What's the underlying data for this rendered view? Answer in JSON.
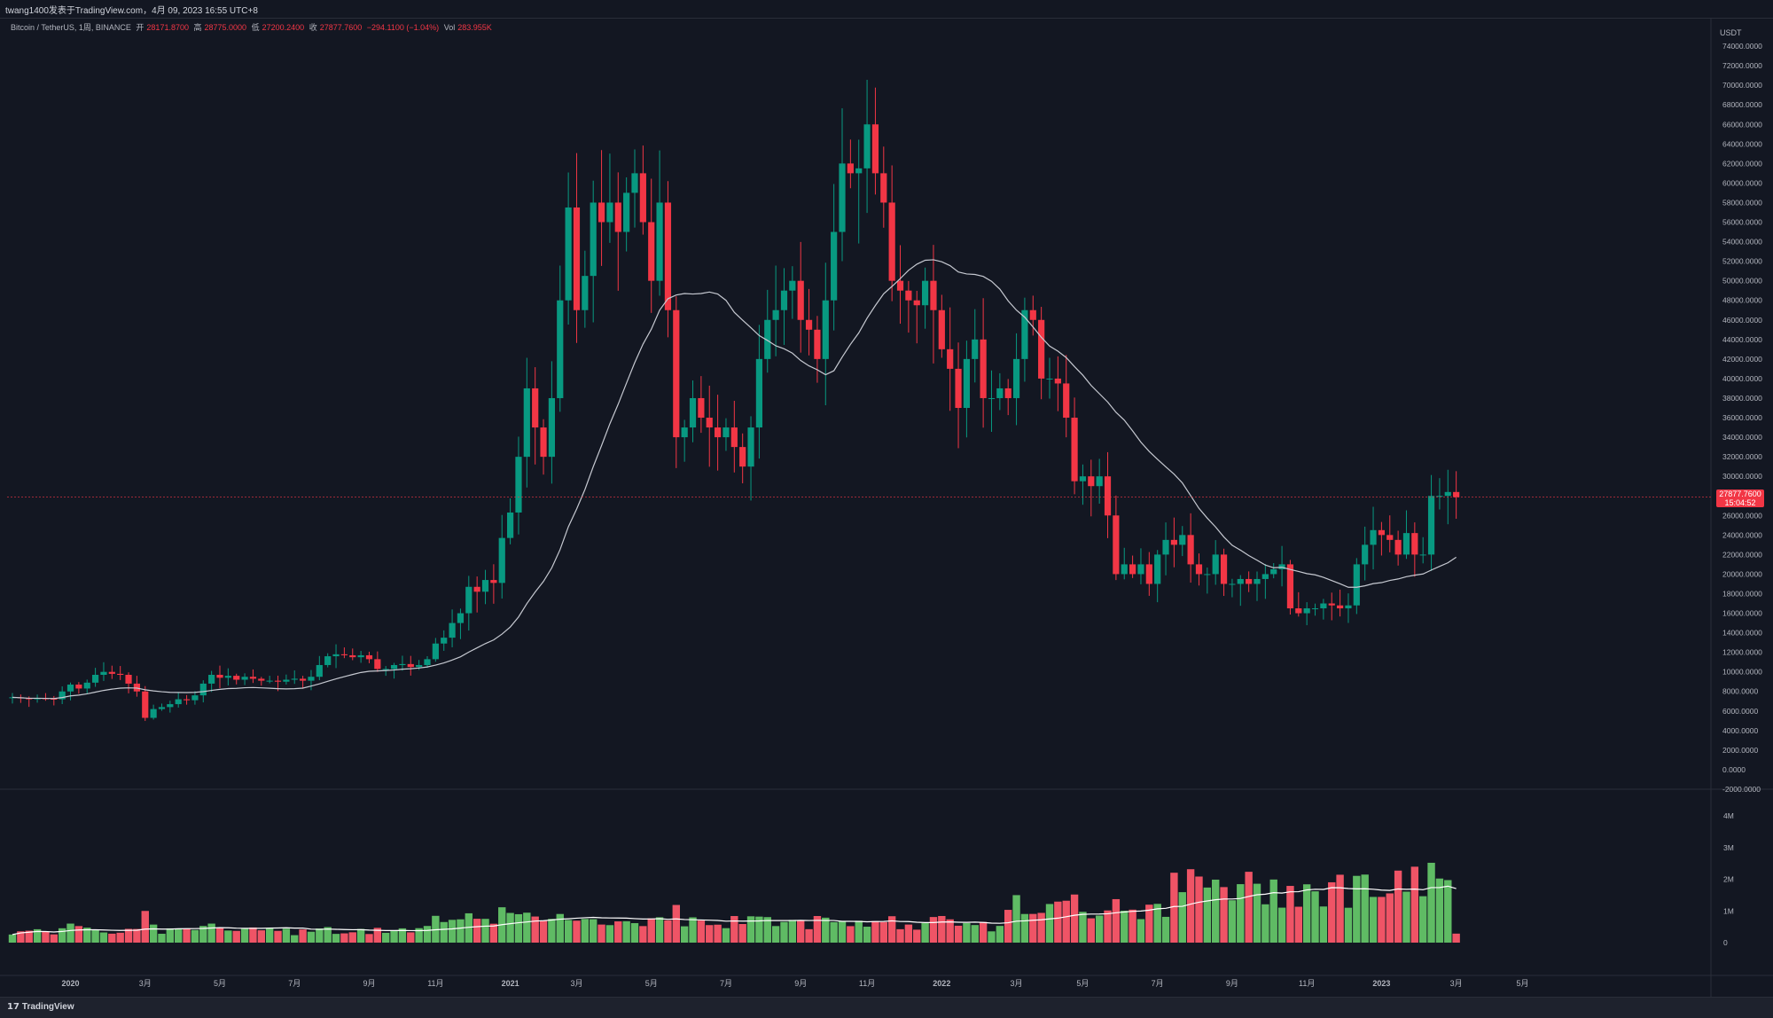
{
  "header": {
    "publish_line": "twang1400发表于TradingView.com，4月 09, 2023 16:55 UTC+8"
  },
  "legend": {
    "symbol": "Bitcoin / TetherUS, 1周, BINANCE",
    "open_label": "开",
    "open_value": "28171.8700",
    "high_label": "高",
    "high_value": "28775.0000",
    "low_label": "低",
    "low_value": "27200.2400",
    "close_label": "收",
    "close_value": "27877.7600",
    "change": "−294.1100 (−1.04%)",
    "vol_label": "Vol",
    "vol_value": "283.955K"
  },
  "current_price": {
    "value": "27877.7600",
    "countdown": "15:04:52"
  },
  "footer": {
    "brand": "TradingView",
    "brand_glyph": "17"
  },
  "colors": {
    "background": "#131722",
    "up": "#089981",
    "down": "#f23645",
    "vol_up": "#5fbb64",
    "vol_down": "#ef5466",
    "vol_up_dark": "#0e5e54",
    "vol_down_dark": "#922a37",
    "ma": "#c6c9d1",
    "vol_ma": "#ffffff"
  },
  "chart_data": {
    "type": "candlestick",
    "currency_label": "USDT",
    "price_ticks": [
      "-2000.0000",
      "0.0000",
      "2000.0000",
      "4000.0000",
      "6000.0000",
      "8000.0000",
      "10000.0000",
      "12000.0000",
      "14000.0000",
      "16000.0000",
      "18000.0000",
      "20000.0000",
      "22000.0000",
      "24000.0000",
      "26000.0000",
      "28000.0000",
      "30000.0000",
      "32000.0000",
      "34000.0000",
      "36000.0000",
      "38000.0000",
      "40000.0000",
      "42000.0000",
      "44000.0000",
      "46000.0000",
      "48000.0000",
      "50000.0000",
      "52000.0000",
      "54000.0000",
      "56000.0000",
      "58000.0000",
      "60000.0000",
      "62000.0000",
      "64000.0000",
      "66000.0000",
      "68000.0000",
      "70000.0000",
      "72000.0000",
      "74000.0000"
    ],
    "price_range": [
      -2000,
      76000
    ],
    "volume_ticks": [
      "0",
      "1M",
      "2M",
      "3M",
      "4M"
    ],
    "volume_range": [
      0,
      4000000
    ],
    "x_labels": [
      {
        "label": "2020",
        "week": 7,
        "bold": true
      },
      {
        "label": "3月",
        "week": 16
      },
      {
        "label": "5月",
        "week": 25
      },
      {
        "label": "7月",
        "week": 34
      },
      {
        "label": "9月",
        "week": 43
      },
      {
        "label": "11月",
        "week": 51
      },
      {
        "label": "2021",
        "week": 60,
        "bold": true
      },
      {
        "label": "3月",
        "week": 68
      },
      {
        "label": "5月",
        "week": 77
      },
      {
        "label": "7月",
        "week": 86
      },
      {
        "label": "9月",
        "week": 95
      },
      {
        "label": "11月",
        "week": 103
      },
      {
        "label": "2022",
        "week": 112,
        "bold": true
      },
      {
        "label": "3月",
        "week": 121
      },
      {
        "label": "5月",
        "week": 129
      },
      {
        "label": "7月",
        "week": 138
      },
      {
        "label": "9月",
        "week": 147
      },
      {
        "label": "11月",
        "week": 156
      },
      {
        "label": "2023",
        "week": 165,
        "bold": true
      },
      {
        "label": "3月",
        "week": 174
      },
      {
        "label": "5月",
        "week": 182
      }
    ],
    "ma_window": 20,
    "volume_ma_window": 20,
    "weekly_closes": [
      7400,
      7300,
      7200,
      7300,
      7250,
      7200,
      8000,
      8700,
      8300,
      8900,
      9700,
      10000,
      9800,
      9700,
      8800,
      8000,
      5300,
      6200,
      6400,
      6700,
      7200,
      7100,
      7600,
      8800,
      9700,
      9400,
      9600,
      9200,
      9500,
      9300,
      9100,
      9100,
      9000,
      9200,
      9300,
      9100,
      9500,
      10700,
      11600,
      11800,
      11700,
      11500,
      11700,
      11300,
      10300,
      10300,
      10700,
      10800,
      10500,
      10700,
      11300,
      12900,
      13500,
      15000,
      16000,
      18700,
      18200,
      19400,
      19100,
      23700,
      26300,
      32000,
      39000,
      35000,
      32000,
      38000,
      48000,
      57500,
      47000,
      50500,
      58000,
      56000,
      58000,
      55000,
      59000,
      61000,
      56000,
      50000,
      58000,
      47000,
      34000,
      35000,
      38000,
      36000,
      35000,
      34000,
      35000,
      33000,
      31000,
      35000,
      42000,
      46000,
      47000,
      49000,
      50000,
      46000,
      45000,
      42000,
      48000,
      55000,
      62000,
      61000,
      61500,
      66000,
      61000,
      58000,
      50000,
      49000,
      48000,
      47500,
      50000,
      47000,
      43000,
      41000,
      37000,
      42000,
      44000,
      38000,
      38000,
      39000,
      38000,
      42000,
      47000,
      46000,
      40000,
      40000,
      39500,
      36000,
      29500,
      30000,
      29000,
      30000,
      26000,
      20000,
      21000,
      20000,
      21000,
      19000,
      22000,
      23500,
      23000,
      24000,
      21000,
      20000,
      20000,
      22000,
      19000,
      19000,
      19500,
      19000,
      19500,
      20000,
      20500,
      21000,
      16500,
      16000,
      16500,
      16500,
      17000,
      16800,
      16500,
      16800,
      21000,
      23000,
      24500,
      24000,
      23500,
      22000,
      24200,
      22000,
      22000,
      28000,
      28000,
      28400,
      27877
    ]
  }
}
